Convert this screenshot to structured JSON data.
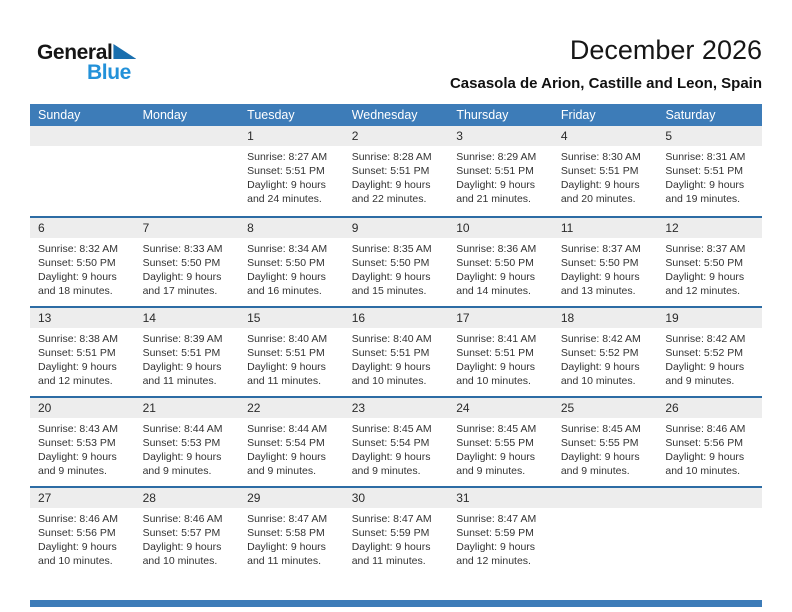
{
  "logo": {
    "part1": "General",
    "part2": "Blue"
  },
  "header": {
    "title": "December 2026",
    "subtitle": "Casasola de Arion, Castille and Leon, Spain"
  },
  "colors": {
    "header_bar": "#3d7cb8",
    "week_divider": "#2d6ca4",
    "day_number_band": "#ededed",
    "logo_blue": "#2291d9",
    "logo_triangle": "#1a6fae",
    "footer_bar": "#3d7cb8"
  },
  "calendar": {
    "weekday_headers": [
      "Sunday",
      "Monday",
      "Tuesday",
      "Wednesday",
      "Thursday",
      "Friday",
      "Saturday"
    ],
    "weeks": [
      [
        null,
        null,
        {
          "day": "1",
          "sunrise": "Sunrise: 8:27 AM",
          "sunset": "Sunset: 5:51 PM",
          "daylight1": "Daylight: 9 hours",
          "daylight2": "and 24 minutes."
        },
        {
          "day": "2",
          "sunrise": "Sunrise: 8:28 AM",
          "sunset": "Sunset: 5:51 PM",
          "daylight1": "Daylight: 9 hours",
          "daylight2": "and 22 minutes."
        },
        {
          "day": "3",
          "sunrise": "Sunrise: 8:29 AM",
          "sunset": "Sunset: 5:51 PM",
          "daylight1": "Daylight: 9 hours",
          "daylight2": "and 21 minutes."
        },
        {
          "day": "4",
          "sunrise": "Sunrise: 8:30 AM",
          "sunset": "Sunset: 5:51 PM",
          "daylight1": "Daylight: 9 hours",
          "daylight2": "and 20 minutes."
        },
        {
          "day": "5",
          "sunrise": "Sunrise: 8:31 AM",
          "sunset": "Sunset: 5:51 PM",
          "daylight1": "Daylight: 9 hours",
          "daylight2": "and 19 minutes."
        }
      ],
      [
        {
          "day": "6",
          "sunrise": "Sunrise: 8:32 AM",
          "sunset": "Sunset: 5:50 PM",
          "daylight1": "Daylight: 9 hours",
          "daylight2": "and 18 minutes."
        },
        {
          "day": "7",
          "sunrise": "Sunrise: 8:33 AM",
          "sunset": "Sunset: 5:50 PM",
          "daylight1": "Daylight: 9 hours",
          "daylight2": "and 17 minutes."
        },
        {
          "day": "8",
          "sunrise": "Sunrise: 8:34 AM",
          "sunset": "Sunset: 5:50 PM",
          "daylight1": "Daylight: 9 hours",
          "daylight2": "and 16 minutes."
        },
        {
          "day": "9",
          "sunrise": "Sunrise: 8:35 AM",
          "sunset": "Sunset: 5:50 PM",
          "daylight1": "Daylight: 9 hours",
          "daylight2": "and 15 minutes."
        },
        {
          "day": "10",
          "sunrise": "Sunrise: 8:36 AM",
          "sunset": "Sunset: 5:50 PM",
          "daylight1": "Daylight: 9 hours",
          "daylight2": "and 14 minutes."
        },
        {
          "day": "11",
          "sunrise": "Sunrise: 8:37 AM",
          "sunset": "Sunset: 5:50 PM",
          "daylight1": "Daylight: 9 hours",
          "daylight2": "and 13 minutes."
        },
        {
          "day": "12",
          "sunrise": "Sunrise: 8:37 AM",
          "sunset": "Sunset: 5:50 PM",
          "daylight1": "Daylight: 9 hours",
          "daylight2": "and 12 minutes."
        }
      ],
      [
        {
          "day": "13",
          "sunrise": "Sunrise: 8:38 AM",
          "sunset": "Sunset: 5:51 PM",
          "daylight1": "Daylight: 9 hours",
          "daylight2": "and 12 minutes."
        },
        {
          "day": "14",
          "sunrise": "Sunrise: 8:39 AM",
          "sunset": "Sunset: 5:51 PM",
          "daylight1": "Daylight: 9 hours",
          "daylight2": "and 11 minutes."
        },
        {
          "day": "15",
          "sunrise": "Sunrise: 8:40 AM",
          "sunset": "Sunset: 5:51 PM",
          "daylight1": "Daylight: 9 hours",
          "daylight2": "and 11 minutes."
        },
        {
          "day": "16",
          "sunrise": "Sunrise: 8:40 AM",
          "sunset": "Sunset: 5:51 PM",
          "daylight1": "Daylight: 9 hours",
          "daylight2": "and 10 minutes."
        },
        {
          "day": "17",
          "sunrise": "Sunrise: 8:41 AM",
          "sunset": "Sunset: 5:51 PM",
          "daylight1": "Daylight: 9 hours",
          "daylight2": "and 10 minutes."
        },
        {
          "day": "18",
          "sunrise": "Sunrise: 8:42 AM",
          "sunset": "Sunset: 5:52 PM",
          "daylight1": "Daylight: 9 hours",
          "daylight2": "and 10 minutes."
        },
        {
          "day": "19",
          "sunrise": "Sunrise: 8:42 AM",
          "sunset": "Sunset: 5:52 PM",
          "daylight1": "Daylight: 9 hours",
          "daylight2": "and 9 minutes."
        }
      ],
      [
        {
          "day": "20",
          "sunrise": "Sunrise: 8:43 AM",
          "sunset": "Sunset: 5:53 PM",
          "daylight1": "Daylight: 9 hours",
          "daylight2": "and 9 minutes."
        },
        {
          "day": "21",
          "sunrise": "Sunrise: 8:44 AM",
          "sunset": "Sunset: 5:53 PM",
          "daylight1": "Daylight: 9 hours",
          "daylight2": "and 9 minutes."
        },
        {
          "day": "22",
          "sunrise": "Sunrise: 8:44 AM",
          "sunset": "Sunset: 5:54 PM",
          "daylight1": "Daylight: 9 hours",
          "daylight2": "and 9 minutes."
        },
        {
          "day": "23",
          "sunrise": "Sunrise: 8:45 AM",
          "sunset": "Sunset: 5:54 PM",
          "daylight1": "Daylight: 9 hours",
          "daylight2": "and 9 minutes."
        },
        {
          "day": "24",
          "sunrise": "Sunrise: 8:45 AM",
          "sunset": "Sunset: 5:55 PM",
          "daylight1": "Daylight: 9 hours",
          "daylight2": "and 9 minutes."
        },
        {
          "day": "25",
          "sunrise": "Sunrise: 8:45 AM",
          "sunset": "Sunset: 5:55 PM",
          "daylight1": "Daylight: 9 hours",
          "daylight2": "and 9 minutes."
        },
        {
          "day": "26",
          "sunrise": "Sunrise: 8:46 AM",
          "sunset": "Sunset: 5:56 PM",
          "daylight1": "Daylight: 9 hours",
          "daylight2": "and 10 minutes."
        }
      ],
      [
        {
          "day": "27",
          "sunrise": "Sunrise: 8:46 AM",
          "sunset": "Sunset: 5:56 PM",
          "daylight1": "Daylight: 9 hours",
          "daylight2": "and 10 minutes."
        },
        {
          "day": "28",
          "sunrise": "Sunrise: 8:46 AM",
          "sunset": "Sunset: 5:57 PM",
          "daylight1": "Daylight: 9 hours",
          "daylight2": "and 10 minutes."
        },
        {
          "day": "29",
          "sunrise": "Sunrise: 8:47 AM",
          "sunset": "Sunset: 5:58 PM",
          "daylight1": "Daylight: 9 hours",
          "daylight2": "and 11 minutes."
        },
        {
          "day": "30",
          "sunrise": "Sunrise: 8:47 AM",
          "sunset": "Sunset: 5:59 PM",
          "daylight1": "Daylight: 9 hours",
          "daylight2": "and 11 minutes."
        },
        {
          "day": "31",
          "sunrise": "Sunrise: 8:47 AM",
          "sunset": "Sunset: 5:59 PM",
          "daylight1": "Daylight: 9 hours",
          "daylight2": "and 12 minutes."
        },
        null,
        null
      ]
    ]
  }
}
